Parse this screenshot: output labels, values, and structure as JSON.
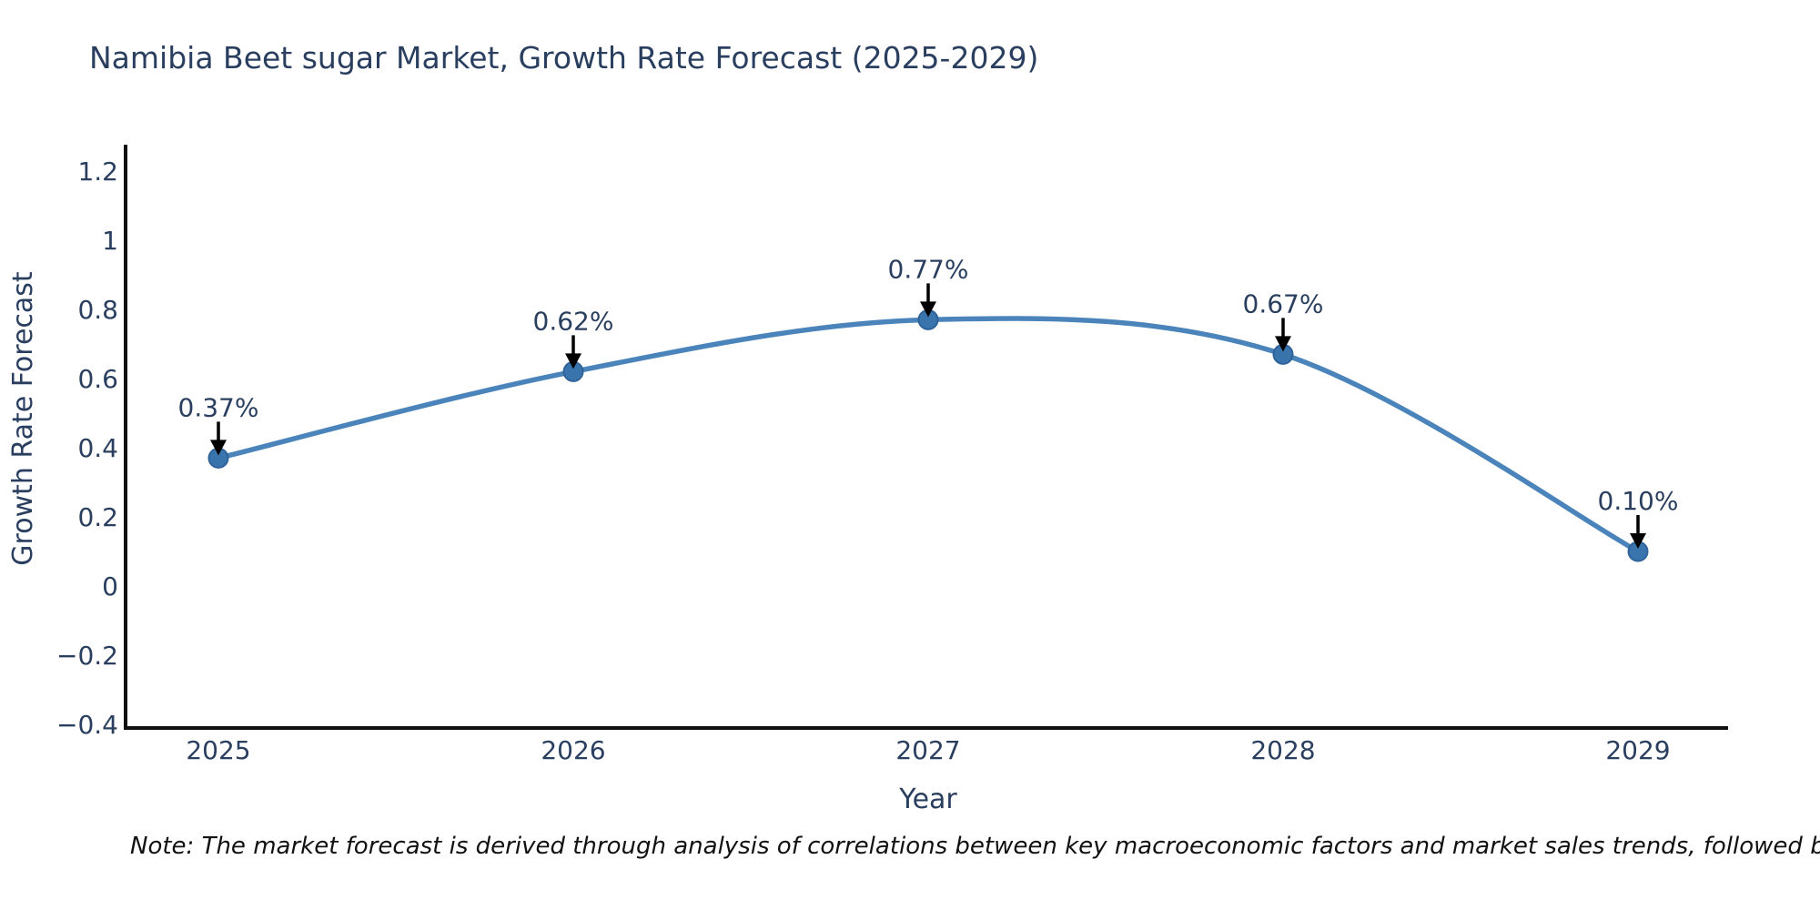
{
  "note": "Note: The market forecast is derived through analysis of correlations between key macroeconomic factors and market sales trends, followed by predictive modeling to project future sa",
  "chart_data": {
    "type": "line",
    "title": "Namibia Beet sugar Market, Growth Rate Forecast (2025-2029)",
    "x": [
      "2025",
      "2026",
      "2027",
      "2028",
      "2029"
    ],
    "values": [
      0.37,
      0.62,
      0.77,
      0.67,
      0.1
    ],
    "point_labels": [
      "0.37%",
      "0.62%",
      "0.77%",
      "0.67%",
      "0.10%"
    ],
    "xlabel": "Year",
    "ylabel": "Growth Rate Forecast",
    "ylim": [
      -0.4,
      1.2
    ],
    "yticks": [
      -0.4,
      -0.2,
      0,
      0.2,
      0.4,
      0.6,
      0.8,
      1,
      1.2
    ],
    "ytick_labels": [
      "−0.4",
      "−0.2",
      "0",
      "0.2",
      "0.4",
      "0.6",
      "0.8",
      "1",
      "1.2"
    ],
    "line_shape": "spline",
    "grid": false,
    "legend": false,
    "colors": {
      "line": "#4a84ba",
      "marker": "#3a74ad",
      "marker_edge": "#2f6399",
      "axis": "#111111",
      "text": "#2a3f5f",
      "annotation_arrow": "#000000",
      "title_text": "#2a3f5f",
      "note_text": "#111111",
      "background": "#ffffff"
    }
  }
}
